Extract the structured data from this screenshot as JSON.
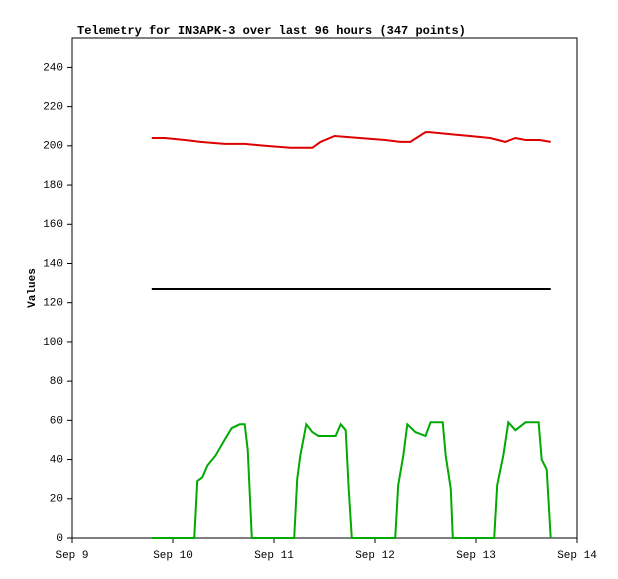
{
  "chart_data": {
    "type": "line",
    "title": "Telemetry for IN3APK-3 over last 96 hours (347 points)",
    "y_label": "Values",
    "xlim": [
      9,
      14
    ],
    "xticks": [
      {
        "value": 9,
        "label": "Sep 9"
      },
      {
        "value": 10,
        "label": "Sep 10"
      },
      {
        "value": 11,
        "label": "Sep 11"
      },
      {
        "value": 12,
        "label": "Sep 12"
      },
      {
        "value": 13,
        "label": "Sep 13"
      },
      {
        "value": 14,
        "label": "Sep 14"
      }
    ],
    "ylim": [
      0,
      255
    ],
    "yticks": [
      0,
      20,
      40,
      60,
      80,
      100,
      120,
      140,
      160,
      180,
      200,
      220,
      240
    ],
    "grid": false,
    "series": [
      {
        "color": "#dd0000",
        "x": [
          9.79,
          9.92,
          10.12,
          10.27,
          10.51,
          10.71,
          10.91,
          11.16,
          11.38,
          11.46,
          11.6,
          11.85,
          12.1,
          12.25,
          12.35,
          12.5,
          12.54,
          12.74,
          12.94,
          13.14,
          13.29,
          13.39,
          13.49,
          13.63,
          13.74
        ],
        "values": [
          204,
          204,
          203,
          202,
          201,
          201,
          200,
          199,
          199,
          202,
          205,
          204,
          203,
          202,
          202,
          207,
          207,
          206,
          205,
          204,
          202,
          204,
          203,
          203,
          202
        ]
      },
      {
        "color": "#000000",
        "x": [
          9.79,
          13.74
        ],
        "values": [
          127,
          127
        ]
      },
      {
        "color": "#00aa00",
        "x": [
          9.79,
          10.21,
          10.24,
          10.29,
          10.34,
          10.42,
          10.51,
          10.58,
          10.66,
          10.71,
          10.74,
          10.78,
          11.2,
          11.23,
          11.26,
          11.32,
          11.38,
          11.44,
          11.61,
          11.66,
          11.71,
          11.74,
          11.77,
          12.2,
          12.23,
          12.28,
          12.32,
          12.4,
          12.5,
          12.55,
          12.67,
          12.7,
          12.75,
          12.77,
          13.18,
          13.21,
          13.27,
          13.32,
          13.39,
          13.49,
          13.62,
          13.65,
          13.7,
          13.74
        ],
        "values": [
          0,
          0,
          29,
          31,
          37,
          42,
          50,
          56,
          58,
          58,
          45,
          0,
          0,
          30,
          42,
          58,
          54,
          52,
          52,
          58,
          55,
          25,
          0,
          0,
          27,
          42,
          58,
          54,
          52,
          59,
          59,
          42,
          25,
          0,
          0,
          27,
          42,
          59,
          55,
          59,
          59,
          40,
          35,
          0
        ]
      }
    ]
  }
}
